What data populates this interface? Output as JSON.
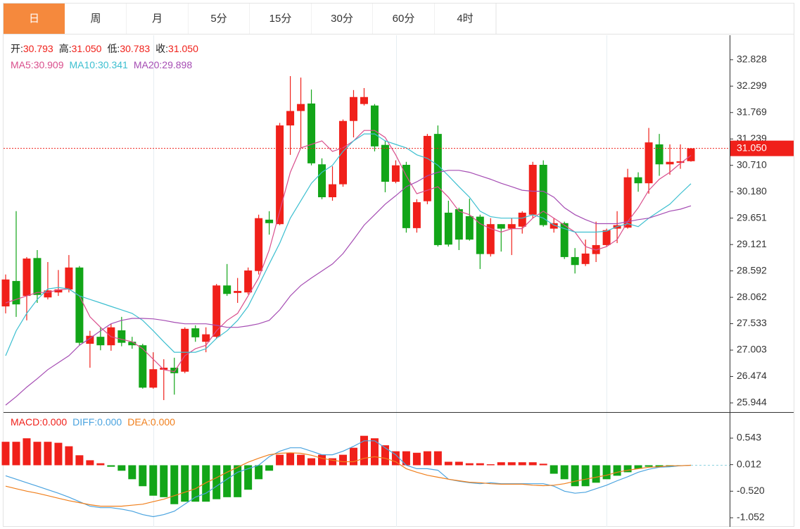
{
  "tabs": {
    "items": [
      "日",
      "周",
      "月",
      "5分",
      "15分",
      "30分",
      "60分",
      "4时"
    ],
    "active": 0,
    "active_color": "#f5893d"
  },
  "chart_data": [
    {
      "type": "candlestick",
      "ylim": [
        25.76,
        33.32
      ],
      "yticks": [
        32.828,
        32.299,
        31.769,
        31.239,
        {
          "value": 30.71,
          "label": "30.710"
        },
        {
          "value": 30.18,
          "label": "30.180"
        },
        29.651,
        29.121,
        28.592,
        28.062,
        27.533,
        27.003,
        26.474,
        25.944
      ],
      "last_price": {
        "value": 31.05,
        "label": "31.050",
        "color": "#f0201a"
      },
      "ohlc_legend": [
        {
          "label": "开:",
          "value_label": "30.793"
        },
        {
          "label": "高:",
          "value_label": "31.050"
        },
        {
          "label": "低:",
          "value_label": "30.783"
        },
        {
          "label": "收:",
          "value_label": "31.050"
        }
      ],
      "up_color": "#f0201a",
      "down_color": "#12a518",
      "candles": {
        "open": [
          27.88,
          28.39,
          28.09,
          28.85,
          28.06,
          28.16,
          28.22,
          28.66,
          27.13,
          27.27,
          27.1,
          27.4,
          27.17,
          27.1,
          26.25,
          26.61,
          26.65,
          26.57,
          27.44,
          27.17,
          27.27,
          28.3,
          28.15,
          28.16,
          28.59,
          29.62,
          29.53,
          31.51,
          31.8,
          31.95,
          30.73,
          30.07,
          30.33,
          31.6,
          31.94,
          31.91,
          31.12,
          30.38,
          30.72,
          29.45,
          29.99,
          31.34,
          29.76,
          29.83,
          29.69,
          29.68,
          28.93,
          29.53,
          29.44,
          29.48,
          29.72,
          30.72,
          29.44,
          29.55,
          28.87,
          28.73,
          28.93,
          29.11,
          29.44,
          29.46,
          30.47,
          30.35,
          31.13,
          30.73,
          30.76,
          30.793
        ],
        "high": [
          28.52,
          29.79,
          28.87,
          29.01,
          28.77,
          28.61,
          28.91,
          28.69,
          27.39,
          27.46,
          27.53,
          27.67,
          27.27,
          27.13,
          26.96,
          26.82,
          26.85,
          27.46,
          27.5,
          27.46,
          28.33,
          28.73,
          28.45,
          28.66,
          29.72,
          29.79,
          31.56,
          32.5,
          32.47,
          32.23,
          30.85,
          30.69,
          31.63,
          32.22,
          32.26,
          31.94,
          31.2,
          30.81,
          30.78,
          30.03,
          31.34,
          31.51,
          30.0,
          29.86,
          30.04,
          29.72,
          29.65,
          29.53,
          29.65,
          29.79,
          30.78,
          30.81,
          29.65,
          29.58,
          29.05,
          29.22,
          29.58,
          29.44,
          29.79,
          30.64,
          30.57,
          31.46,
          31.34,
          31.13,
          31.13,
          31.05
        ],
        "low": [
          27.74,
          27.67,
          27.6,
          27.95,
          28.02,
          28.09,
          28.16,
          27.1,
          26.65,
          27.0,
          26.99,
          27.08,
          27.03,
          26.23,
          26.23,
          26.0,
          26.11,
          26.54,
          27.17,
          26.96,
          27.24,
          28.09,
          27.95,
          28.12,
          28.52,
          29.32,
          29.51,
          30.92,
          31.06,
          30.71,
          30.03,
          30.0,
          30.28,
          31.27,
          31.91,
          30.99,
          30.17,
          30.35,
          29.36,
          29.36,
          29.93,
          29.08,
          29.08,
          29.01,
          29.2,
          28.63,
          28.88,
          28.98,
          28.91,
          29.34,
          29.65,
          29.48,
          29.36,
          28.83,
          28.54,
          28.69,
          28.77,
          29.08,
          29.15,
          29.44,
          30.18,
          30.14,
          30.5,
          30.52,
          30.64,
          30.783
        ],
        "close": [
          28.42,
          27.92,
          28.84,
          28.11,
          28.2,
          28.22,
          28.66,
          27.15,
          27.29,
          27.1,
          27.46,
          27.15,
          27.1,
          26.25,
          26.62,
          26.65,
          26.54,
          27.43,
          27.26,
          27.32,
          28.3,
          28.13,
          28.19,
          28.6,
          29.65,
          29.55,
          31.51,
          31.8,
          31.94,
          30.75,
          30.07,
          30.33,
          31.6,
          32.08,
          32.08,
          31.09,
          30.38,
          30.71,
          29.45,
          29.97,
          31.3,
          29.11,
          29.12,
          29.22,
          29.22,
          28.93,
          29.53,
          29.44,
          29.53,
          29.76,
          30.72,
          29.51,
          29.55,
          28.87,
          28.71,
          28.94,
          29.11,
          29.41,
          29.51,
          30.47,
          30.35,
          31.17,
          30.73,
          30.78,
          30.79,
          31.05
        ]
      },
      "series": [
        {
          "label": "MA5:",
          "value_label": "30.909",
          "color": "#d94e8c",
          "values": [
            27.95,
            28.02,
            28.09,
            28.16,
            28.16,
            28.21,
            28.23,
            28.09,
            27.67,
            27.46,
            27.27,
            27.22,
            27.17,
            27.03,
            26.82,
            26.61,
            26.57,
            26.89,
            27.03,
            27.1,
            27.39,
            27.6,
            27.74,
            28.09,
            28.45,
            29.01,
            29.79,
            30.57,
            31.06,
            31.13,
            31.2,
            30.99,
            31.06,
            31.2,
            31.41,
            31.41,
            31.27,
            30.92,
            30.5,
            30.14,
            30.21,
            30.28,
            30.07,
            29.79,
            29.72,
            29.54,
            29.44,
            29.37,
            29.44,
            29.44,
            29.65,
            29.79,
            29.65,
            29.51,
            29.37,
            29.08,
            29.01,
            29.08,
            29.22,
            29.58,
            29.86,
            30.21,
            30.43,
            30.57,
            30.75,
            30.909
          ]
        },
        {
          "label": "MA10:",
          "value_label": "30.341",
          "color": "#3cbfd0",
          "values": [
            26.89,
            27.39,
            27.74,
            28.02,
            28.23,
            28.26,
            28.23,
            28.09,
            28.02,
            27.95,
            27.88,
            27.81,
            27.74,
            27.6,
            27.39,
            27.17,
            26.96,
            26.96,
            26.96,
            27.03,
            27.24,
            27.39,
            27.6,
            27.88,
            28.3,
            28.73,
            29.15,
            29.65,
            30.0,
            30.35,
            30.57,
            30.71,
            30.99,
            31.2,
            31.34,
            31.34,
            31.2,
            31.13,
            31.06,
            30.92,
            30.85,
            30.71,
            30.5,
            30.28,
            30.07,
            29.79,
            29.68,
            29.65,
            29.65,
            29.65,
            29.72,
            29.65,
            29.51,
            29.44,
            29.37,
            29.37,
            29.37,
            29.39,
            29.48,
            29.54,
            29.48,
            29.65,
            29.79,
            29.93,
            30.14,
            30.341
          ]
        },
        {
          "label": "MA20:",
          "value_label": "29.898",
          "color": "#a54cb3",
          "values": [
            25.9,
            26.07,
            26.26,
            26.43,
            26.61,
            26.75,
            26.89,
            27.1,
            27.24,
            27.39,
            27.53,
            27.6,
            27.64,
            27.64,
            27.63,
            27.6,
            27.56,
            27.53,
            27.53,
            27.53,
            27.5,
            27.46,
            27.46,
            27.49,
            27.53,
            27.6,
            27.81,
            28.09,
            28.3,
            28.45,
            28.59,
            28.73,
            28.94,
            29.22,
            29.51,
            29.72,
            29.93,
            30.1,
            30.28,
            30.38,
            30.5,
            30.57,
            30.61,
            30.61,
            30.57,
            30.5,
            30.43,
            30.35,
            30.28,
            30.21,
            30.19,
            30.19,
            30.07,
            29.86,
            29.72,
            29.62,
            29.54,
            29.54,
            29.54,
            29.58,
            29.62,
            29.65,
            29.72,
            29.79,
            29.83,
            29.898
          ]
        }
      ]
    },
    {
      "type": "macd",
      "ylim": [
        -1.235,
        1.023
      ],
      "yticks": [
        0.543,
        0.012,
        {
          "value": -0.52,
          "label": "-0.520"
        },
        -1.052
      ],
      "histogram": {
        "label": "MACD:",
        "value_label": "0.000",
        "color": "#f0201a",
        "up_color": "#f0201a",
        "down_color": "#12a518",
        "values": [
          0.47,
          0.47,
          0.54,
          0.47,
          0.47,
          0.45,
          0.38,
          0.2,
          0.1,
          0.04,
          -0.03,
          -0.11,
          -0.28,
          -0.42,
          -0.61,
          -0.64,
          -0.78,
          -0.73,
          -0.73,
          -0.73,
          -0.68,
          -0.64,
          -0.64,
          -0.49,
          -0.28,
          -0.11,
          0.21,
          0.25,
          0.21,
          0.14,
          0.21,
          0.14,
          0.21,
          0.35,
          0.59,
          0.54,
          0.4,
          0.28,
          0.28,
          0.25,
          0.28,
          0.28,
          0.07,
          0.07,
          0.04,
          0.04,
          0.02,
          0.06,
          0.06,
          0.06,
          0.06,
          0.03,
          -0.17,
          -0.28,
          -0.42,
          -0.42,
          -0.35,
          -0.28,
          -0.21,
          -0.14,
          -0.07,
          -0.03,
          -0.04,
          -0.03,
          -0.01,
          0.0
        ]
      },
      "series": [
        {
          "label": "DIFF:",
          "value_label": "0.000",
          "color": "#4aa3df",
          "values": [
            -0.21,
            -0.28,
            -0.35,
            -0.42,
            -0.49,
            -0.56,
            -0.64,
            -0.73,
            -0.82,
            -0.85,
            -0.85,
            -0.88,
            -0.92,
            -0.99,
            -1.03,
            -0.99,
            -0.92,
            -0.78,
            -0.64,
            -0.56,
            -0.42,
            -0.28,
            -0.14,
            -0.07,
            0.0,
            0.17,
            0.28,
            0.35,
            0.35,
            0.28,
            0.21,
            0.21,
            0.28,
            0.38,
            0.49,
            0.49,
            0.35,
            0.21,
            0.0,
            -0.07,
            -0.07,
            -0.1,
            -0.28,
            -0.32,
            -0.35,
            -0.37,
            -0.35,
            -0.37,
            -0.37,
            -0.37,
            -0.37,
            -0.37,
            -0.42,
            -0.52,
            -0.56,
            -0.54,
            -0.47,
            -0.4,
            -0.31,
            -0.23,
            -0.14,
            -0.08,
            -0.04,
            -0.03,
            -0.01,
            0.0
          ]
        },
        {
          "label": "DEA:",
          "value_label": "0.000",
          "color": "#f07f1c",
          "values": [
            -0.42,
            -0.47,
            -0.52,
            -0.56,
            -0.61,
            -0.66,
            -0.71,
            -0.75,
            -0.79,
            -0.82,
            -0.82,
            -0.82,
            -0.8,
            -0.78,
            -0.73,
            -0.68,
            -0.61,
            -0.54,
            -0.47,
            -0.35,
            -0.25,
            -0.14,
            -0.04,
            0.06,
            0.14,
            0.21,
            0.24,
            0.25,
            0.24,
            0.2,
            0.14,
            0.1,
            0.07,
            0.07,
            0.14,
            0.17,
            0.14,
            0.07,
            -0.07,
            -0.14,
            -0.2,
            -0.24,
            -0.28,
            -0.31,
            -0.34,
            -0.35,
            -0.37,
            -0.38,
            -0.38,
            -0.38,
            -0.4,
            -0.41,
            -0.4,
            -0.37,
            -0.32,
            -0.28,
            -0.24,
            -0.2,
            -0.14,
            -0.1,
            -0.07,
            -0.04,
            -0.03,
            -0.01,
            -0.01,
            0.0
          ]
        }
      ]
    }
  ]
}
